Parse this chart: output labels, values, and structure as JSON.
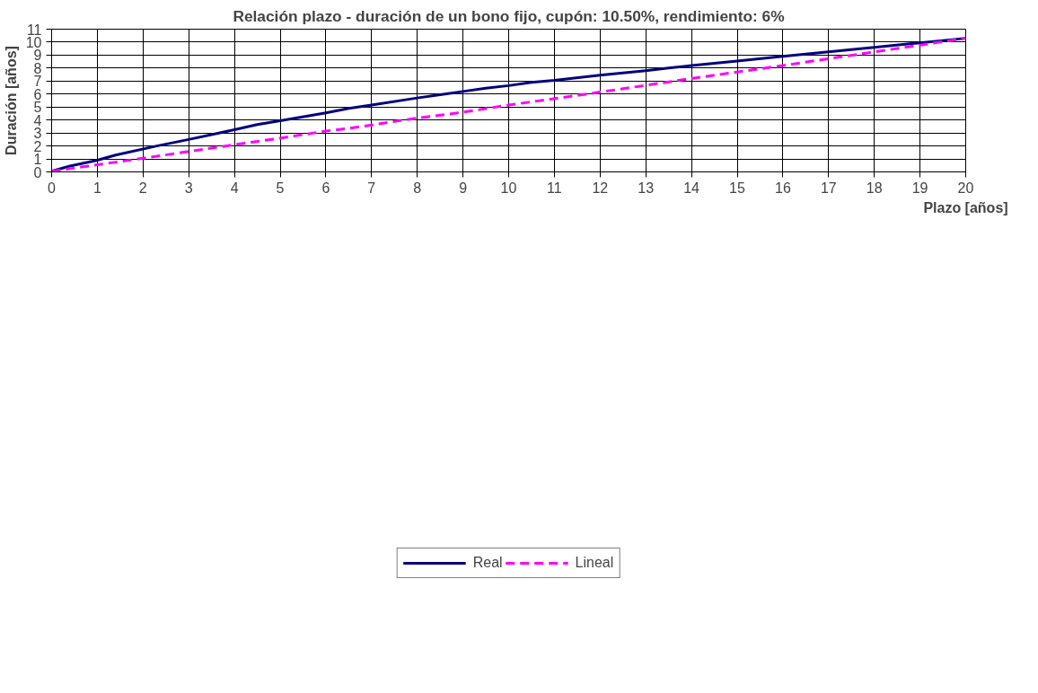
{
  "chart_data": {
    "type": "line",
    "title": "Relación plazo - duración de un bono fijo, cupón: 10.50%, rendimiento: 6%",
    "xlabel": "Plazo [años]",
    "ylabel": "Duración [años]",
    "xlim": [
      0,
      20
    ],
    "ylim": [
      0,
      11
    ],
    "xticks": [
      0,
      1,
      2,
      3,
      4,
      5,
      6,
      7,
      8,
      9,
      10,
      11,
      12,
      13,
      14,
      15,
      16,
      17,
      18,
      19,
      20
    ],
    "yticks": [
      0,
      1,
      2,
      3,
      4,
      5,
      6,
      7,
      8,
      9,
      10,
      11
    ],
    "grid": true,
    "legend": "bottom",
    "series": [
      {
        "name": "Real",
        "color": "#000080",
        "line_style": "solid",
        "x": [
          0,
          0.4,
          1,
          1.4,
          2.3,
          3,
          4,
          4.5,
          5,
          6,
          6.5,
          7,
          8,
          8.5,
          9,
          9.5,
          10,
          10.5,
          11,
          12,
          13,
          13.5,
          14,
          15,
          16,
          17,
          18,
          19,
          20
        ],
        "values": [
          0.05,
          0.45,
          0.9,
          1.3,
          2.0,
          2.5,
          3.25,
          3.65,
          3.95,
          4.55,
          4.9,
          5.15,
          5.7,
          5.95,
          6.2,
          6.45,
          6.65,
          6.9,
          7.05,
          7.45,
          7.8,
          8.0,
          8.2,
          8.55,
          8.9,
          9.25,
          9.6,
          9.95,
          10.3
        ]
      },
      {
        "name": "Lineal",
        "color": "#ff00ff",
        "line_style": "dashed",
        "x": [
          0,
          2,
          4,
          5,
          6,
          6.5,
          8,
          9,
          10,
          12,
          14,
          16,
          18,
          20
        ],
        "values": [
          0.05,
          1.05,
          2.1,
          2.6,
          3.15,
          3.35,
          4.15,
          4.6,
          5.15,
          6.15,
          7.2,
          8.2,
          9.25,
          10.3
        ]
      }
    ]
  }
}
